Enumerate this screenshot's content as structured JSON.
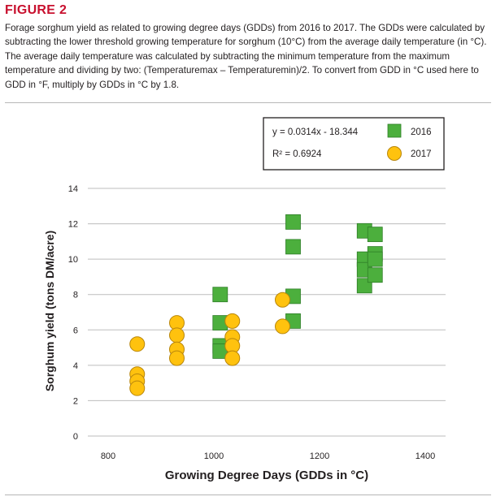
{
  "figure_label": "FIGURE 2",
  "caption": "Forage sorghum yield as related to growing degree days (GDDs) from 2016 to 2017. The GDDs were calculated by subtracting the lower threshold growing temperature for sorghum (10°C) from the average daily temperature (in °C). The average daily temperature was calculated by subtracting the minimum temperature from the maximum temperature and dividing by two: (Temperaturemax – Temperaturemin)/2. To convert from GDD in °C used here to GDD in °F, multiply by GDDs in °C by 1.8.",
  "colors": {
    "label": "#c8102e",
    "s2016": "#4caf3d",
    "s2016_stroke": "#2e7d27",
    "s2017": "#ffc20e",
    "s2017_stroke": "#b8860b",
    "grid": "#bdbdbd"
  },
  "chart_data": {
    "type": "scatter",
    "xlabel": "Growing Degree Days (GDDs in °C)",
    "ylabel": "Sorghum yield (tons DM/acre)",
    "xlim": [
      700,
      1450
    ],
    "ylim": [
      0,
      14
    ],
    "x_ticks": [
      800,
      1000,
      1200,
      1400
    ],
    "y_ticks": [
      0,
      2,
      4,
      6,
      8,
      10,
      12,
      14
    ],
    "grid": "horizontal",
    "legend_position": "top-right",
    "equation": "y = 0.0314x - 18.344",
    "r_squared": "R² = 0.6924",
    "series": [
      {
        "name": "2016",
        "marker": "square",
        "points": [
          [
            1012,
            8.0
          ],
          [
            1012,
            6.4
          ],
          [
            1012,
            5.1
          ],
          [
            1012,
            4.8
          ],
          [
            1150,
            12.1
          ],
          [
            1150,
            10.7
          ],
          [
            1150,
            7.9
          ],
          [
            1150,
            6.5
          ],
          [
            1285,
            11.6
          ],
          [
            1285,
            10.0
          ],
          [
            1285,
            9.4
          ],
          [
            1285,
            8.5
          ],
          [
            1305,
            11.4
          ],
          [
            1305,
            10.3
          ],
          [
            1305,
            10.0
          ],
          [
            1305,
            9.1
          ]
        ]
      },
      {
        "name": "2017",
        "marker": "circle",
        "points": [
          [
            855,
            5.2
          ],
          [
            855,
            3.5
          ],
          [
            855,
            3.1
          ],
          [
            855,
            2.7
          ],
          [
            930,
            6.4
          ],
          [
            930,
            5.7
          ],
          [
            930,
            4.9
          ],
          [
            930,
            4.4
          ],
          [
            1035,
            6.5
          ],
          [
            1035,
            5.6
          ],
          [
            1035,
            5.1
          ],
          [
            1035,
            4.4
          ],
          [
            1130,
            7.7
          ],
          [
            1130,
            6.2
          ]
        ]
      }
    ]
  }
}
